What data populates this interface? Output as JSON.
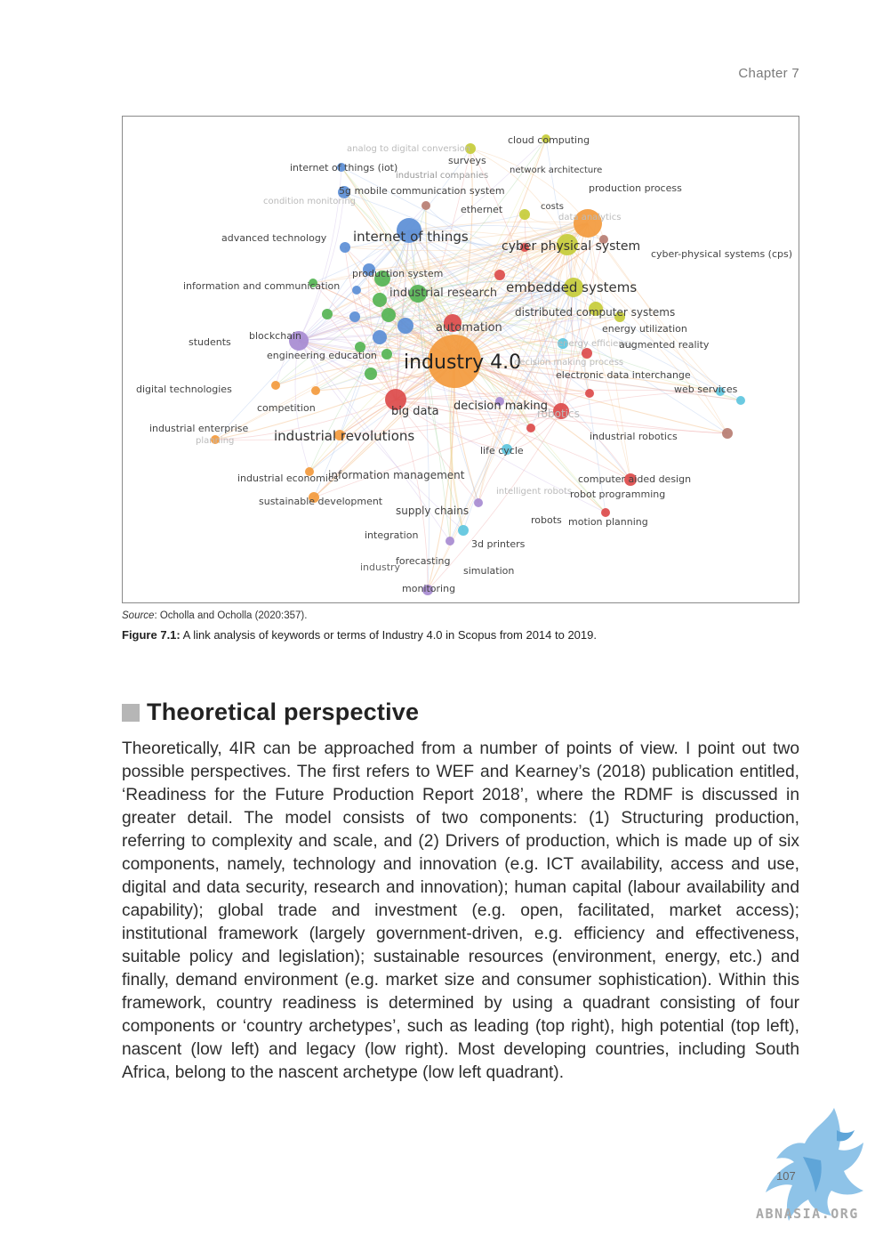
{
  "header": {
    "chapter": "Chapter 7"
  },
  "figure": {
    "source_label": "Source",
    "source_text": ": Ocholla and Ocholla (2020:357).",
    "caption_label": "Figure 7.1:",
    "caption_text": " A link analysis of keywords or terms of Industry 4.0 in Scopus from 2014 to 2019."
  },
  "network": {
    "colors": {
      "orange": "#f39a3d",
      "blue": "#5b8ed6",
      "green": "#55b454",
      "red": "#dc4b4b",
      "yellow": "#c5cc3a",
      "purple": "#a78bd1",
      "cyan": "#5ec6de",
      "brown": "#b77d72"
    },
    "labels": [
      {
        "t": "industry 4.0",
        "c": "#222",
        "s": 22
      },
      {
        "t": "cloud computing",
        "c": "#444",
        "s": 11
      },
      {
        "t": "analog to digital conversion",
        "c": "#bbb",
        "s": 10
      },
      {
        "t": "surveys",
        "c": "#444",
        "s": 11
      },
      {
        "t": "internet of things (iot)",
        "c": "#444",
        "s": 11
      },
      {
        "t": "industrial companies",
        "c": "#999",
        "s": 10
      },
      {
        "t": "network architecture",
        "c": "#444",
        "s": 10
      },
      {
        "t": "5g mobile communication system",
        "c": "#444",
        "s": 11
      },
      {
        "t": "production process",
        "c": "#444",
        "s": 11
      },
      {
        "t": "condition monitoring",
        "c": "#bbb",
        "s": 10
      },
      {
        "t": "ethernet",
        "c": "#444",
        "s": 11
      },
      {
        "t": "costs",
        "c": "#444",
        "s": 10
      },
      {
        "t": "data analytics",
        "c": "#bbb",
        "s": 10
      },
      {
        "t": "advanced technology",
        "c": "#444",
        "s": 11
      },
      {
        "t": "internet of things",
        "c": "#333",
        "s": 15
      },
      {
        "t": "cyber physical system",
        "c": "#333",
        "s": 14
      },
      {
        "t": "cyber-physical systems (cps)",
        "c": "#444",
        "s": 11
      },
      {
        "t": "production system",
        "c": "#444",
        "s": 11
      },
      {
        "t": "information and communication",
        "c": "#444",
        "s": 11
      },
      {
        "t": "industrial research",
        "c": "#444",
        "s": 13
      },
      {
        "t": "embedded systems",
        "c": "#333",
        "s": 15
      },
      {
        "t": "distributed computer systems",
        "c": "#444",
        "s": 12
      },
      {
        "t": "automation",
        "c": "#444",
        "s": 13
      },
      {
        "t": "energy utilization",
        "c": "#444",
        "s": 11
      },
      {
        "t": "students",
        "c": "#444",
        "s": 11
      },
      {
        "t": "blockchain",
        "c": "#444",
        "s": 11
      },
      {
        "t": "energy efficiency",
        "c": "#bbb",
        "s": 10
      },
      {
        "t": "augmented reality",
        "c": "#444",
        "s": 11
      },
      {
        "t": "engineering education",
        "c": "#444",
        "s": 11
      },
      {
        "t": "decision making process",
        "c": "#bbb",
        "s": 10
      },
      {
        "t": "electronic data interchange",
        "c": "#444",
        "s": 11
      },
      {
        "t": "digital technologies",
        "c": "#444",
        "s": 11
      },
      {
        "t": "web services",
        "c": "#444",
        "s": 11
      },
      {
        "t": "competition",
        "c": "#444",
        "s": 11
      },
      {
        "t": "big data",
        "c": "#333",
        "s": 13
      },
      {
        "t": "decision making",
        "c": "#333",
        "s": 13
      },
      {
        "t": "robotics",
        "c": "#bbb",
        "s": 12
      },
      {
        "t": "industrial enterprise",
        "c": "#444",
        "s": 11
      },
      {
        "t": "planning",
        "c": "#bbb",
        "s": 10
      },
      {
        "t": "industrial revolutions",
        "c": "#333",
        "s": 15
      },
      {
        "t": "industrial robotics",
        "c": "#444",
        "s": 11
      },
      {
        "t": "life cycle",
        "c": "#444",
        "s": 11
      },
      {
        "t": "industrial economics",
        "c": "#444",
        "s": 11
      },
      {
        "t": "information management",
        "c": "#444",
        "s": 12
      },
      {
        "t": "computer aided design",
        "c": "#444",
        "s": 11
      },
      {
        "t": "intelligent robots",
        "c": "#bbb",
        "s": 10
      },
      {
        "t": "robot programming",
        "c": "#444",
        "s": 11
      },
      {
        "t": "sustainable development",
        "c": "#444",
        "s": 11
      },
      {
        "t": "supply chains",
        "c": "#444",
        "s": 12
      },
      {
        "t": "robots",
        "c": "#444",
        "s": 11
      },
      {
        "t": "motion planning",
        "c": "#444",
        "s": 11
      },
      {
        "t": "integration",
        "c": "#444",
        "s": 11
      },
      {
        "t": "3d printers",
        "c": "#444",
        "s": 11
      },
      {
        "t": "forecasting",
        "c": "#444",
        "s": 11
      },
      {
        "t": "industry",
        "c": "#666",
        "s": 11
      },
      {
        "t": "simulation",
        "c": "#444",
        "s": 11
      },
      {
        "t": "monitoring",
        "c": "#444",
        "s": 11
      }
    ],
    "nodes": [
      {
        "c": "orange",
        "r": 30
      },
      {
        "c": "blue",
        "r": 14
      },
      {
        "c": "blue",
        "r": 7
      },
      {
        "c": "blue",
        "r": 6
      },
      {
        "c": "blue",
        "r": 6
      },
      {
        "c": "blue",
        "r": 8
      },
      {
        "c": "blue",
        "r": 9
      },
      {
        "c": "blue",
        "r": 5
      },
      {
        "c": "blue",
        "r": 5
      },
      {
        "c": "blue",
        "r": 7
      },
      {
        "c": "green",
        "r": 10
      },
      {
        "c": "green",
        "r": 9
      },
      {
        "c": "green",
        "r": 8
      },
      {
        "c": "green",
        "r": 8
      },
      {
        "c": "green",
        "r": 7
      },
      {
        "c": "green",
        "r": 6
      },
      {
        "c": "green",
        "r": 6
      },
      {
        "c": "green",
        "r": 5
      },
      {
        "c": "green",
        "r": 6
      },
      {
        "c": "red",
        "r": 12
      },
      {
        "c": "red",
        "r": 10
      },
      {
        "c": "red",
        "r": 9
      },
      {
        "c": "red",
        "r": 6
      },
      {
        "c": "red",
        "r": 5
      },
      {
        "c": "red",
        "r": 6
      },
      {
        "c": "red",
        "r": 7
      },
      {
        "c": "red",
        "r": 5
      },
      {
        "c": "red",
        "r": 5
      },
      {
        "c": "red",
        "r": 5
      },
      {
        "c": "yellow",
        "r": 12
      },
      {
        "c": "yellow",
        "r": 11
      },
      {
        "c": "yellow",
        "r": 8
      },
      {
        "c": "yellow",
        "r": 6
      },
      {
        "c": "yellow",
        "r": 6
      },
      {
        "c": "yellow",
        "r": 5
      },
      {
        "c": "yellow",
        "r": 6
      },
      {
        "c": "orange",
        "r": 16
      },
      {
        "c": "orange",
        "r": 6
      },
      {
        "c": "orange",
        "r": 5
      },
      {
        "c": "orange",
        "r": 5
      },
      {
        "c": "orange",
        "r": 5
      },
      {
        "c": "orange",
        "r": 6
      },
      {
        "c": "orange",
        "r": 5
      },
      {
        "c": "purple",
        "r": 11
      },
      {
        "c": "purple",
        "r": 5
      },
      {
        "c": "purple",
        "r": 5
      },
      {
        "c": "purple",
        "r": 5
      },
      {
        "c": "purple",
        "r": 6
      },
      {
        "c": "cyan",
        "r": 6
      },
      {
        "c": "cyan",
        "r": 6
      },
      {
        "c": "cyan",
        "r": 6
      },
      {
        "c": "cyan",
        "r": 5
      },
      {
        "c": "cyan",
        "r": 5
      },
      {
        "c": "brown",
        "r": 6
      },
      {
        "c": "brown",
        "r": 5
      },
      {
        "c": "brown",
        "r": 5
      }
    ]
  },
  "section": {
    "title": "Theoretical perspective"
  },
  "body": {
    "paragraph": "Theoretically, 4IR can be approached from a number of points of view. I point out two possible perspectives. The first refers to WEF and Kearney’s (2018) publication entitled, ‘Readiness for the Future Production Report 2018’, where the RDMF is discussed in greater detail. The model consists of two components: (1) Structuring production, referring to complexity and scale, and (2) Drivers of production, which is made up of six components, namely, technology and innovation (e.g. ICT availability, access and use, digital and data security, research and innovation); human capital (labour availability and capability); global trade and investment (e.g. open, facilitated, market access); institutional framework (largely government-driven, e.g. efficiency and effectiveness, suitable policy and legislation); sustainable resources (environment, energy, etc.) and finally, demand environment (e.g. market size and consumer sophistication). Within this framework, country readiness is determined by using a quadrant consisting of four components or ‘country archetypes’, such as leading (top right), high potential (top left), nascent (low left) and legacy (low right). Most developing countries, including South Africa, belong to the nascent archetype (low left quadrant)."
  },
  "footer": {
    "page_number": "107",
    "watermark": "ABNASIA.ORG"
  }
}
